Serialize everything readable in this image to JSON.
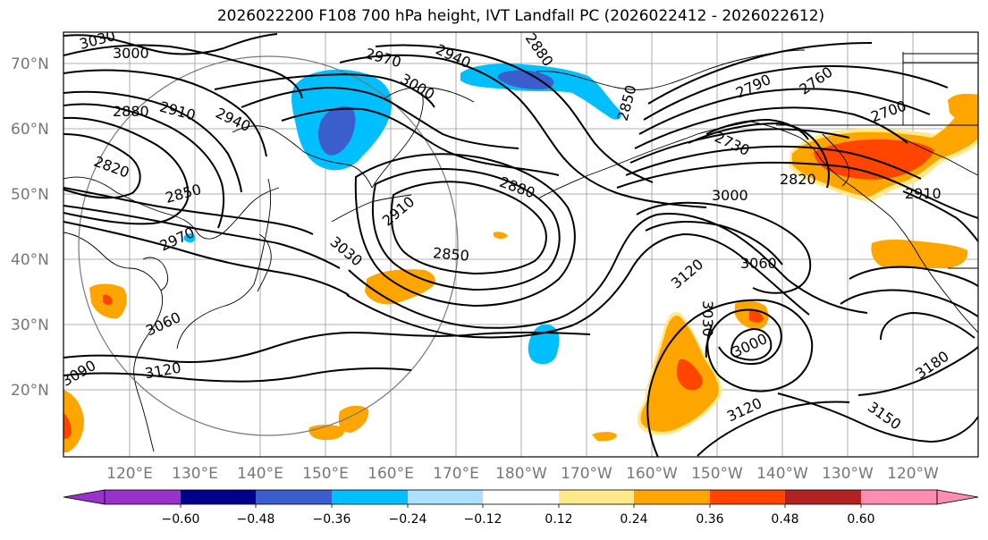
{
  "title": "2026022200 F108 700 hPa height, IVT Landfall PC (2026022412 - 2026022612)",
  "lat_labels": [
    "70°N",
    "60°N",
    "50°N",
    "40°N",
    "30°N",
    "20°N"
  ],
  "lon_labels": [
    "120°E",
    "130°E",
    "140°E",
    "150°E",
    "160°E",
    "170°E",
    "180°W",
    "170°W",
    "160°W",
    "150°W",
    "140°W",
    "130°W",
    "120°W"
  ],
  "contour_labels": [
    "3030",
    "3000",
    "2880",
    "2910",
    "2940",
    "2820",
    "2850",
    "2970",
    "3060",
    "3120",
    "3090",
    "2970",
    "2940",
    "3000",
    "2910",
    "2850",
    "3030",
    "2880",
    "2880",
    "2850",
    "2790",
    "2760",
    "2700",
    "2730",
    "2820",
    "3000",
    "2910",
    "3120",
    "3060",
    "3030",
    "3000",
    "3120",
    "3150",
    "3180"
  ],
  "colorbar": {
    "ticks": [
      "−0.60",
      "−0.48",
      "−0.36",
      "−0.24",
      "−0.12",
      "0.12",
      "0.24",
      "0.36",
      "0.48",
      "0.60"
    ],
    "colors": [
      "#9932CC",
      "#00008B",
      "#3A5FCD",
      "#00BFFF",
      "#ADDFFF",
      "#FFFFFF",
      "#FFE98A",
      "#FFA500",
      "#FF4500",
      "#B22222",
      "#FF8DB0"
    ]
  },
  "field_colors": {
    "blue_light": "#ADDFFF",
    "blue": "#00BFFF",
    "blue_dark": "#3A5FCD",
    "yellow": "#FFE98A",
    "orange": "#FFA500",
    "red": "#FF4500"
  }
}
